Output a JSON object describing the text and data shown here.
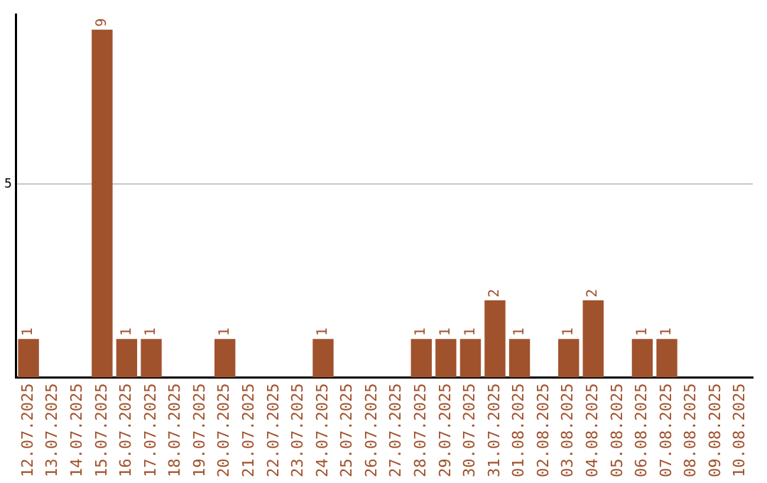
{
  "chart_data": {
    "type": "bar",
    "categories": [
      "12.07.2025",
      "13.07.2025",
      "14.07.2025",
      "15.07.2025",
      "16.07.2025",
      "17.07.2025",
      "18.07.2025",
      "19.07.2025",
      "20.07.2025",
      "21.07.2025",
      "22.07.2025",
      "23.07.2025",
      "24.07.2025",
      "25.07.2025",
      "26.07.2025",
      "27.07.2025",
      "28.07.2025",
      "29.07.2025",
      "30.07.2025",
      "31.07.2025",
      "01.08.2025",
      "02.08.2025",
      "03.08.2025",
      "04.08.2025",
      "05.08.2025",
      "06.08.2025",
      "07.08.2025",
      "08.08.2025",
      "09.08.2025",
      "10.08.2025"
    ],
    "values": [
      1,
      0,
      0,
      9,
      1,
      1,
      0,
      0,
      1,
      0,
      0,
      0,
      1,
      0,
      0,
      0,
      1,
      1,
      1,
      2,
      1,
      0,
      1,
      2,
      0,
      1,
      1,
      0,
      0,
      0
    ],
    "value_labels": [
      "1",
      null,
      null,
      "9",
      "1",
      "1",
      null,
      null,
      "1",
      null,
      null,
      null,
      "1",
      null,
      null,
      null,
      "1",
      "1",
      "1",
      "2",
      "1",
      null,
      "1",
      "2",
      null,
      "1",
      "1",
      null,
      null,
      null
    ],
    "color": "#a0522d",
    "ylim": [
      0,
      9.4
    ],
    "yticks": [
      5
    ],
    "grid": "y"
  }
}
